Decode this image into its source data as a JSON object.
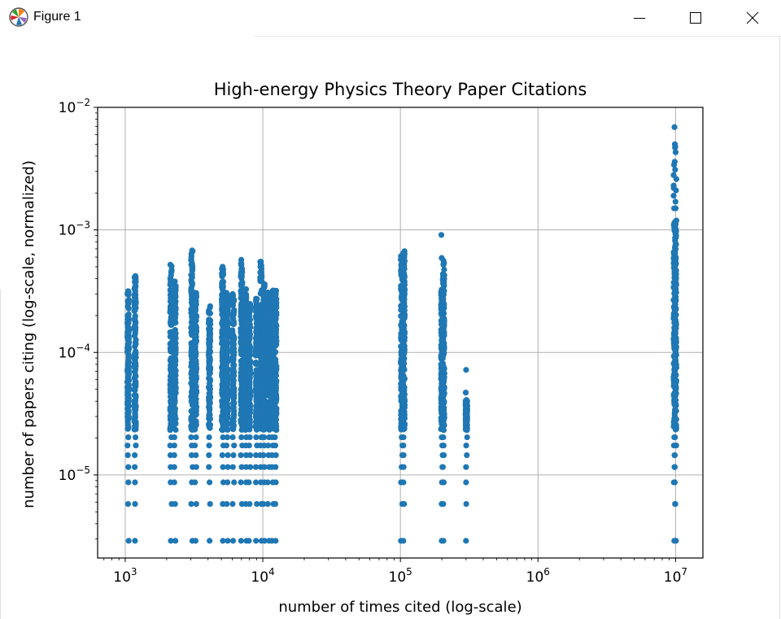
{
  "window": {
    "title": "Figure 1",
    "icon": "matplotlib-icon",
    "controls": {
      "minimize": "minimize-icon",
      "maximize": "maximize-icon",
      "close": "close-icon"
    }
  },
  "chart_data": {
    "type": "scatter",
    "title": "High-energy Physics Theory Paper Citations",
    "xlabel": "number of times cited (log-scale)",
    "ylabel": "number of papers citing (log-scale, normalized)",
    "xscale": "log",
    "yscale": "log",
    "xlim": [
      630,
      15800000
    ],
    "ylim": [
      2.1e-06,
      0.01
    ],
    "x_ticks": [
      {
        "value": 1000,
        "base": "10",
        "exp": "3"
      },
      {
        "value": 10000,
        "base": "10",
        "exp": "4"
      },
      {
        "value": 100000,
        "base": "10",
        "exp": "5"
      },
      {
        "value": 1000000,
        "base": "10",
        "exp": "6"
      },
      {
        "value": 10000000,
        "base": "10",
        "exp": "7"
      }
    ],
    "y_ticks": [
      {
        "value": 1e-05,
        "base": "10",
        "exp": "−5"
      },
      {
        "value": 0.0001,
        "base": "10",
        "exp": "−4"
      },
      {
        "value": 0.001,
        "base": "10",
        "exp": "−3"
      },
      {
        "value": 0.01,
        "base": "10",
        "exp": "−2"
      }
    ],
    "grid": true,
    "marker_color": "#1f77b4",
    "background": "#ffffff",
    "clusters": [
      {
        "x": 1050,
        "y_min": 2.9e-06,
        "y_max": 0.00032,
        "extra_y": [
          2.9e-06,
          5.8e-06,
          8.7e-06,
          1.16e-05,
          1.45e-05,
          1.74e-05,
          2.03e-05,
          0.00011,
          0.00031
        ]
      },
      {
        "x": 1180,
        "y_min": 2.9e-06,
        "y_max": 0.00042,
        "extra_y": [
          2.9e-06,
          5.8e-06,
          8.7e-06,
          1.16e-05,
          1.45e-05,
          1.74e-05,
          2.03e-05,
          0.00019,
          0.00041,
          0.00042
        ]
      },
      {
        "x": 2150,
        "y_min": 2.9e-06,
        "y_max": 0.00052,
        "extra_y": [
          2.9e-06,
          5.8e-06,
          8.7e-06,
          1.16e-05,
          1.45e-05,
          1.74e-05,
          2.03e-05,
          0.00052
        ]
      },
      {
        "x": 2300,
        "y_min": 2.9e-06,
        "y_max": 0.00038,
        "extra_y": [
          2.9e-06,
          5.8e-06,
          8.7e-06,
          1.16e-05,
          1.45e-05,
          1.74e-05,
          2.03e-05,
          0.00038
        ]
      },
      {
        "x": 3050,
        "y_min": 2.9e-06,
        "y_max": 0.00068,
        "extra_y": [
          2.9e-06,
          5.8e-06,
          8.7e-06,
          1.16e-05,
          1.45e-05,
          1.74e-05,
          2.03e-05,
          0.00049,
          0.00068
        ]
      },
      {
        "x": 3250,
        "y_min": 2.9e-06,
        "y_max": 0.00031,
        "extra_y": [
          2.9e-06,
          5.8e-06,
          8.7e-06,
          1.16e-05,
          1.45e-05,
          1.74e-05,
          2.03e-05
        ]
      },
      {
        "x": 4100,
        "y_min": 2.9e-06,
        "y_max": 0.00024,
        "extra_y": [
          2.9e-06,
          5.8e-06,
          8.7e-06,
          1.16e-05,
          1.45e-05,
          1.74e-05,
          2.03e-05
        ]
      },
      {
        "x": 5100,
        "y_min": 2.9e-06,
        "y_max": 0.0005,
        "extra_y": [
          2.9e-06,
          5.8e-06,
          8.7e-06,
          1.16e-05,
          1.45e-05,
          1.74e-05,
          2.03e-05,
          0.00044,
          0.0005
        ]
      },
      {
        "x": 5500,
        "y_min": 2.9e-06,
        "y_max": 0.00031,
        "extra_y": [
          2.9e-06,
          5.8e-06,
          8.7e-06,
          1.16e-05,
          1.45e-05,
          1.74e-05,
          2.03e-05
        ]
      },
      {
        "x": 6100,
        "y_min": 2.9e-06,
        "y_max": 0.0003,
        "extra_y": [
          2.9e-06,
          5.8e-06,
          8.7e-06,
          1.16e-05,
          1.45e-05,
          1.74e-05,
          2.03e-05,
          0.00029
        ]
      },
      {
        "x": 7000,
        "y_min": 2.9e-06,
        "y_max": 0.00057,
        "extra_y": [
          2.9e-06,
          5.8e-06,
          8.7e-06,
          1.16e-05,
          1.45e-05,
          1.74e-05,
          2.03e-05,
          0.00057
        ]
      },
      {
        "x": 7500,
        "y_min": 2.9e-06,
        "y_max": 0.00033,
        "extra_y": [
          2.9e-06,
          5.8e-06,
          8.7e-06,
          1.16e-05,
          1.45e-05,
          1.74e-05,
          2.03e-05
        ]
      },
      {
        "x": 8000,
        "y_min": 2.9e-06,
        "y_max": 0.00025,
        "extra_y": [
          2.9e-06,
          5.8e-06,
          8.7e-06,
          1.16e-05,
          1.45e-05,
          1.74e-05,
          2.03e-05
        ]
      },
      {
        "x": 9000,
        "y_min": 2.9e-06,
        "y_max": 0.00028,
        "extra_y": [
          2.9e-06,
          5.8e-06,
          8.7e-06,
          1.16e-05,
          1.45e-05,
          1.74e-05,
          2.03e-05
        ]
      },
      {
        "x": 9700,
        "y_min": 2.9e-06,
        "y_max": 0.00055,
        "extra_y": [
          2.9e-06,
          5.8e-06,
          8.7e-06,
          1.16e-05,
          1.45e-05,
          1.74e-05,
          2.03e-05,
          0.00055
        ]
      },
      {
        "x": 10200,
        "y_min": 2.9e-06,
        "y_max": 0.00036,
        "extra_y": [
          2.9e-06,
          5.8e-06,
          8.7e-06,
          1.16e-05,
          1.45e-05,
          1.74e-05,
          2.03e-05,
          0.00036
        ]
      },
      {
        "x": 11000,
        "y_min": 2.9e-06,
        "y_max": 0.00031,
        "extra_y": [
          2.9e-06,
          5.8e-06,
          8.7e-06,
          1.16e-05,
          1.45e-05,
          1.74e-05,
          2.03e-05
        ]
      },
      {
        "x": 11800,
        "y_min": 2.9e-06,
        "y_max": 0.00033,
        "extra_y": [
          2.9e-06,
          5.8e-06,
          8.7e-06,
          1.16e-05,
          1.45e-05,
          1.74e-05,
          2.03e-05
        ]
      },
      {
        "x": 12400,
        "y_min": 2.9e-06,
        "y_max": 0.00032,
        "extra_y": [
          2.9e-06,
          5.8e-06,
          8.7e-06,
          1.16e-05,
          1.45e-05,
          1.74e-05,
          2.03e-05
        ]
      },
      {
        "x": 102000,
        "y_min": 2.9e-06,
        "y_max": 0.00061,
        "extra_y": [
          2.9e-06,
          5.8e-06,
          8.7e-06,
          1.16e-05,
          1.45e-05,
          1.74e-05,
          2.03e-05,
          0.00052,
          0.00061
        ]
      },
      {
        "x": 106000,
        "y_min": 2.9e-06,
        "y_max": 0.00067,
        "extra_y": [
          2.9e-06,
          5.8e-06,
          8.7e-06,
          1.16e-05,
          1.45e-05,
          1.74e-05,
          2.03e-05,
          0.00067
        ]
      },
      {
        "x": 200000,
        "y_min": 2.9e-06,
        "y_max": 0.00033,
        "extra_y": [
          2.9e-06,
          5.8e-06,
          8.7e-06,
          1.16e-05,
          1.45e-05,
          1.74e-05,
          2.03e-05,
          0.00059,
          0.00091
        ]
      },
      {
        "x": 206000,
        "y_min": 2.9e-06,
        "y_max": 0.00056,
        "extra_y": [
          2.9e-06,
          5.8e-06,
          8.7e-06,
          1.16e-05,
          1.45e-05,
          1.74e-05,
          2.03e-05,
          0.00056
        ]
      },
      {
        "x": 302000,
        "y_min": 2.9e-06,
        "y_max": 4.1e-05,
        "extra_y": [
          2.9e-06,
          5.8e-06,
          8.7e-06,
          1.16e-05,
          1.45e-05,
          1.74e-05,
          2.03e-05,
          4.7e-05,
          7.2e-05
        ]
      },
      {
        "x": 9800000,
        "y_min": 2.9e-06,
        "y_max": 0.0012,
        "extra_y": [
          2.9e-06,
          5.8e-06,
          8.7e-06,
          1.16e-05,
          1.45e-05,
          1.74e-05,
          2.03e-05,
          0.0015,
          0.0019,
          0.0022,
          0.0023,
          0.0028,
          0.0034,
          0.0036,
          0.0047,
          0.005,
          0.0069
        ]
      },
      {
        "x": 10000000,
        "y_min": 2.9e-06,
        "y_max": 0.0012,
        "extra_y": [
          2.9e-06,
          5.8e-06,
          8.7e-06,
          1.16e-05,
          1.45e-05,
          1.74e-05,
          2.03e-05,
          0.0015,
          0.0017,
          0.0021,
          0.0026,
          0.0031,
          0.0043,
          0.0048
        ]
      }
    ]
  }
}
